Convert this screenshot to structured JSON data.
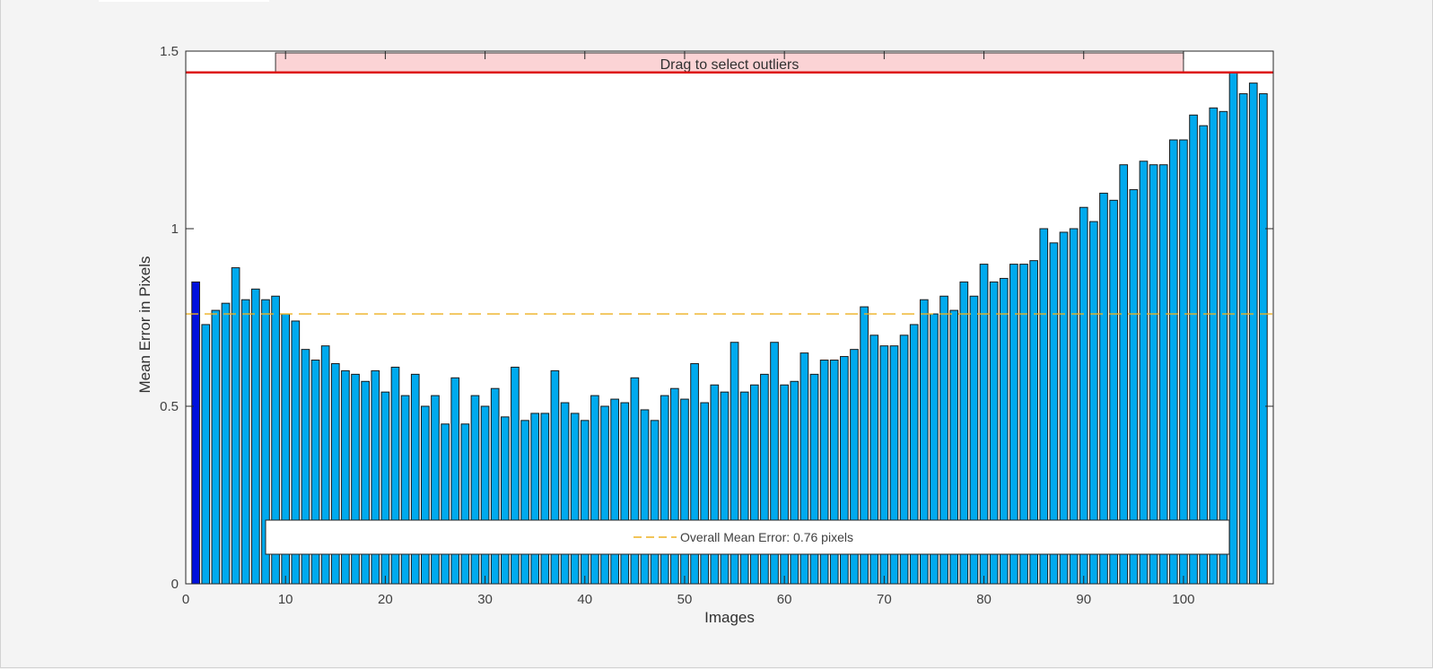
{
  "chart_data": {
    "type": "bar",
    "xlabel": "Images",
    "ylabel": "Mean Error in Pixels",
    "xlim": [
      0,
      109
    ],
    "ylim": [
      0,
      1.5
    ],
    "x_ticks": [
      0,
      10,
      20,
      30,
      40,
      50,
      60,
      70,
      80,
      90,
      100
    ],
    "y_ticks": [
      0,
      0.5,
      1,
      1.5
    ],
    "y_tick_labels": [
      "0",
      "0.5",
      "1",
      "1.5"
    ],
    "categories": [
      1,
      2,
      3,
      4,
      5,
      6,
      7,
      8,
      9,
      10,
      11,
      12,
      13,
      14,
      15,
      16,
      17,
      18,
      19,
      20,
      21,
      22,
      23,
      24,
      25,
      26,
      27,
      28,
      29,
      30,
      31,
      32,
      33,
      34,
      35,
      36,
      37,
      38,
      39,
      40,
      41,
      42,
      43,
      44,
      45,
      46,
      47,
      48,
      49,
      50,
      51,
      52,
      53,
      54,
      55,
      56,
      57,
      58,
      59,
      60,
      61,
      62,
      63,
      64,
      65,
      66,
      67,
      68,
      69,
      70,
      71,
      72,
      73,
      74,
      75,
      76,
      77,
      78,
      79,
      80,
      81,
      82,
      83,
      84,
      85,
      86,
      87,
      88,
      89,
      90,
      91,
      92,
      93,
      94,
      95,
      96,
      97,
      98,
      99,
      100,
      101,
      102,
      103,
      104,
      105,
      106,
      107,
      108
    ],
    "values": [
      0.85,
      0.73,
      0.77,
      0.79,
      0.89,
      0.8,
      0.83,
      0.8,
      0.81,
      0.76,
      0.74,
      0.66,
      0.63,
      0.67,
      0.62,
      0.6,
      0.59,
      0.57,
      0.6,
      0.54,
      0.61,
      0.53,
      0.59,
      0.5,
      0.53,
      0.45,
      0.58,
      0.45,
      0.53,
      0.5,
      0.55,
      0.47,
      0.61,
      0.46,
      0.48,
      0.48,
      0.6,
      0.51,
      0.48,
      0.46,
      0.53,
      0.5,
      0.52,
      0.51,
      0.58,
      0.49,
      0.46,
      0.53,
      0.55,
      0.52,
      0.62,
      0.51,
      0.56,
      0.54,
      0.68,
      0.54,
      0.56,
      0.59,
      0.68,
      0.56,
      0.57,
      0.65,
      0.59,
      0.63,
      0.63,
      0.64,
      0.66,
      0.78,
      0.7,
      0.67,
      0.67,
      0.7,
      0.73,
      0.8,
      0.76,
      0.81,
      0.77,
      0.85,
      0.81,
      0.9,
      0.85,
      0.86,
      0.9,
      0.9,
      0.91,
      1.0,
      0.96,
      0.99,
      1.0,
      1.06,
      1.02,
      1.1,
      1.08,
      1.18,
      1.11,
      1.19,
      1.18,
      1.18,
      1.25,
      1.25,
      1.32,
      1.29,
      1.34,
      1.33,
      1.44,
      1.38,
      1.41,
      1.38
    ],
    "highlighted_bar": 1,
    "overall_mean": 0.76,
    "outlier_threshold": 1.44,
    "legend": {
      "entries": [
        "Overall Mean Error: 0.76 pixels"
      ],
      "placement": "bottom"
    },
    "grid": false,
    "colors": {
      "bar": "#00aaee",
      "bar_highlight": "#0011dd",
      "bar_edge": "#1a1a1a",
      "mean_line": "#edb120",
      "threshold_line": "#dd1111",
      "drag_handle": "#fbd3d5"
    }
  },
  "drag_handle_label": "Drag to select outliers"
}
